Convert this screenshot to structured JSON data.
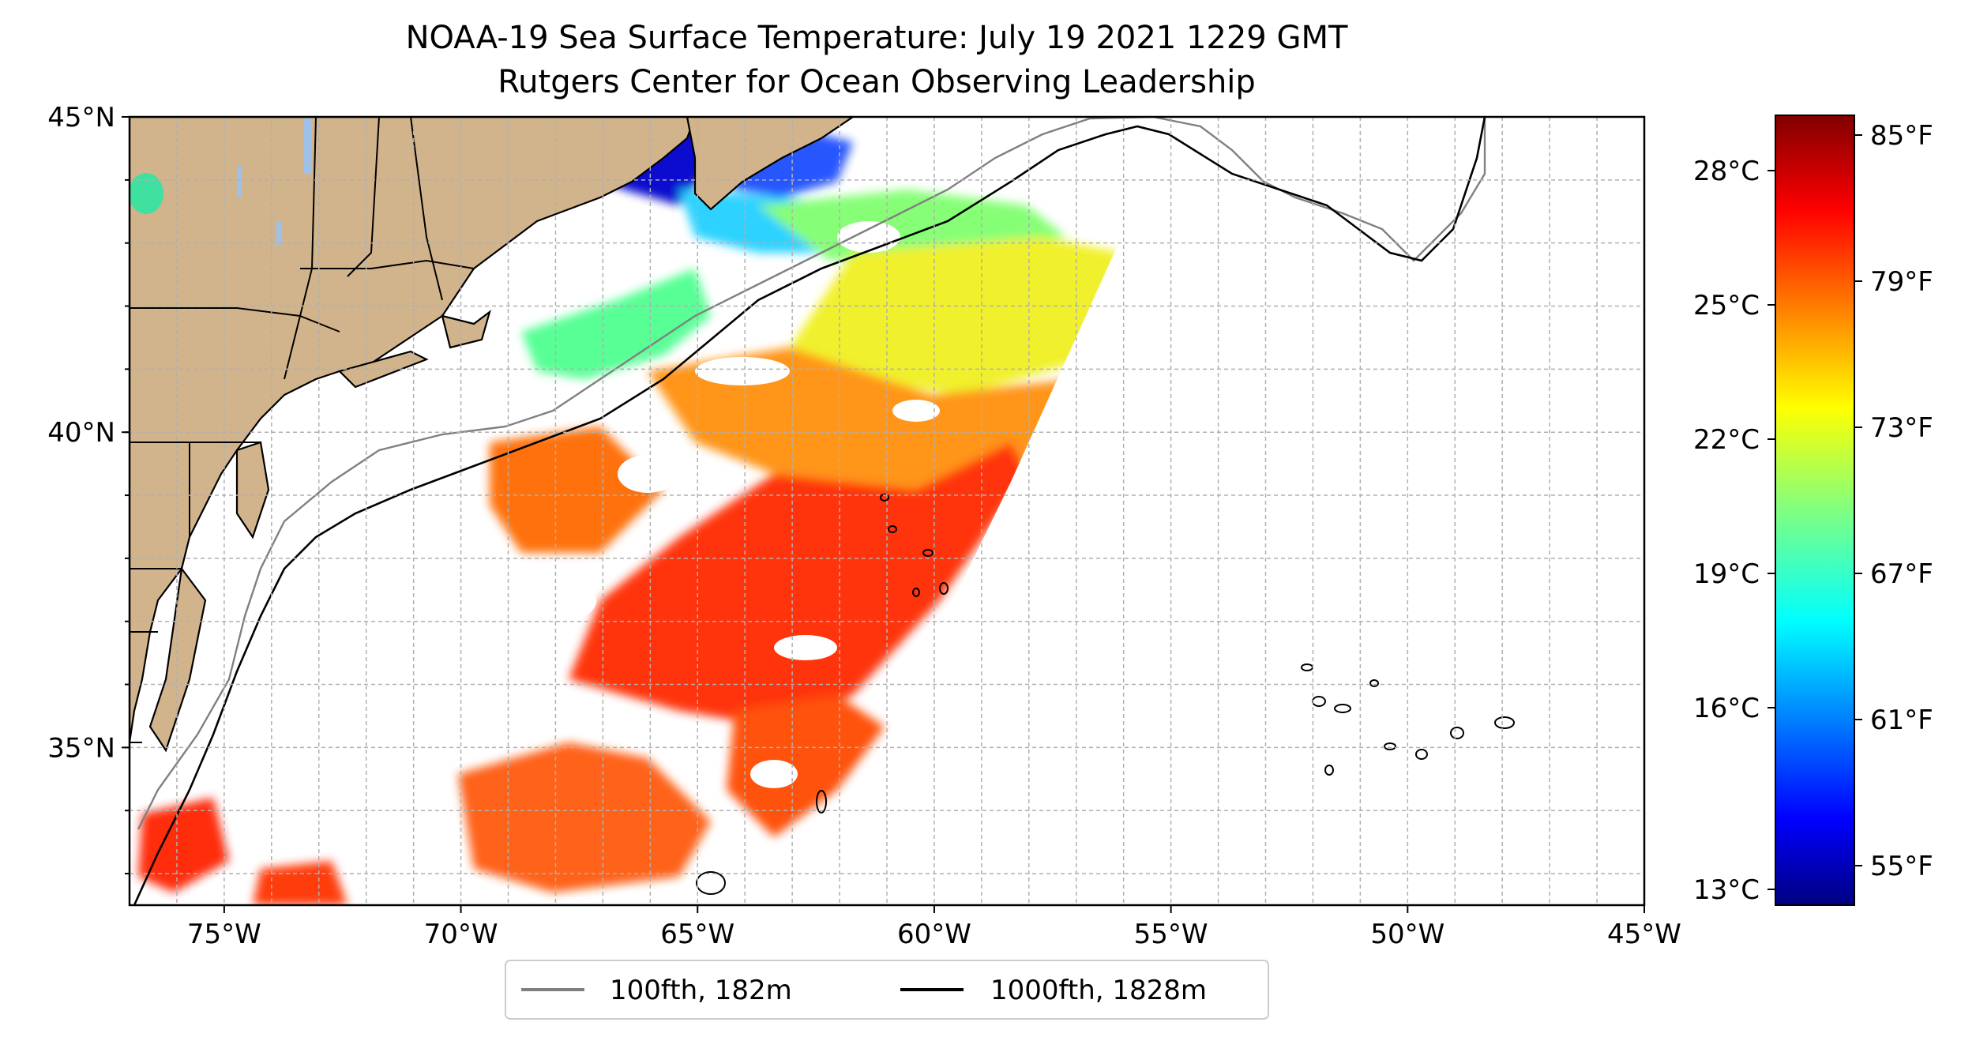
{
  "title": "NOAA-19 Sea Surface Temperature: July 19 2021 1229 GMT",
  "subtitle": "Rutgers Center for Ocean Observing Leadership",
  "map": {
    "lon_range": [
      -77,
      -45
    ],
    "lat_range": [
      32.5,
      45
    ],
    "lon_ticks": [
      "75°W",
      "70°W",
      "65°W",
      "60°W",
      "55°W",
      "50°W",
      "45°W"
    ],
    "lat_ticks": [
      "45°N",
      "40°N",
      "35°N"
    ],
    "gridlines": true,
    "land_color": "#d2b48c",
    "ocean_color": "#ffffff"
  },
  "legend": {
    "placement": "bottom-center",
    "items": [
      {
        "label": "100fth, 182m",
        "color": "#808080"
      },
      {
        "label": "1000fth, 1828m",
        "color": "#000000"
      }
    ]
  },
  "colorbar": {
    "colormap": "jet",
    "celsius_labels": [
      "28°C",
      "25°C",
      "22°C",
      "19°C",
      "16°C",
      "13°C"
    ],
    "fahrenheit_labels": [
      "85°F",
      "79°F",
      "73°F",
      "67°F",
      "61°F",
      "55°F"
    ],
    "colors": [
      "#800000",
      "#ff0000",
      "#ff8000",
      "#ffff00",
      "#80ff80",
      "#00ffff",
      "#0080ff",
      "#0000ff",
      "#000080"
    ]
  }
}
